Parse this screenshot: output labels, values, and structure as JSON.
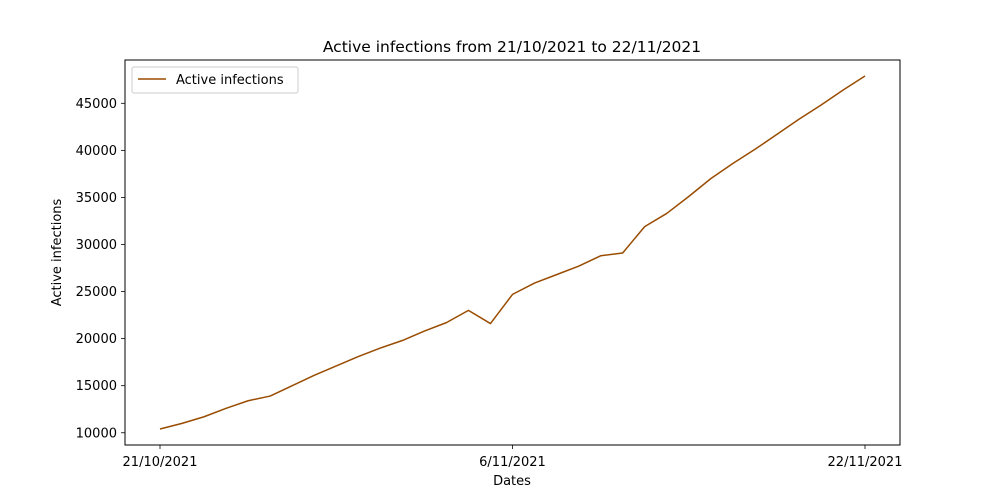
{
  "chart_data": {
    "type": "line",
    "title": "Active infections from 21/10/2021 to 22/11/2021",
    "xlabel": "Dates",
    "ylabel": "Active infections",
    "x_ticks": [
      "21/10/2021",
      "6/11/2021",
      "22/11/2021"
    ],
    "ylim": [
      8700,
      49600
    ],
    "y_ticks": [
      10000,
      15000,
      20000,
      25000,
      30000,
      35000,
      40000,
      45000
    ],
    "grid": false,
    "legend_position": "upper-left",
    "series_color": "#994c00",
    "x": [
      "21/10/2021",
      "22/10/2021",
      "23/10/2021",
      "24/10/2021",
      "25/10/2021",
      "26/10/2021",
      "27/10/2021",
      "28/10/2021",
      "29/10/2021",
      "30/10/2021",
      "31/10/2021",
      "1/11/2021",
      "2/11/2021",
      "3/11/2021",
      "4/11/2021",
      "5/11/2021",
      "6/11/2021",
      "7/11/2021",
      "8/11/2021",
      "9/11/2021",
      "10/11/2021",
      "11/11/2021",
      "12/11/2021",
      "13/11/2021",
      "14/11/2021",
      "15/11/2021",
      "16/11/2021",
      "17/11/2021",
      "18/11/2021",
      "19/11/2021",
      "20/11/2021",
      "21/11/2021",
      "22/11/2021"
    ],
    "series": [
      {
        "name": "Active infections",
        "values": [
          10400,
          11000,
          11700,
          12600,
          13400,
          13900,
          15000,
          16100,
          17100,
          18100,
          19000,
          19800,
          20800,
          21700,
          23000,
          21600,
          24700,
          25900,
          26800,
          27700,
          28800,
          29100,
          31900,
          33300,
          35100,
          37000,
          38600,
          40100,
          41700,
          43300,
          44800,
          46400,
          47900
        ]
      }
    ]
  }
}
